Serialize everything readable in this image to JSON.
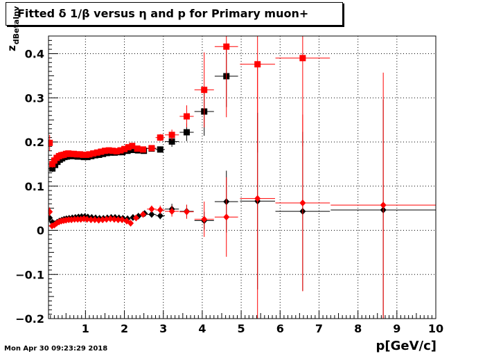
{
  "chart_data": {
    "type": "scatter",
    "title": "Fitted δ 1/β versus η and p for Primary muon+",
    "xlabel": "p[GeV/c]",
    "ylabel": "z",
    "ylabel_sub": "dBetaInv",
    "xlim": [
      0.05,
      10
    ],
    "ylim": [
      -0.2,
      0.44
    ],
    "xticks": [
      1,
      2,
      3,
      4,
      5,
      6,
      7,
      8,
      9,
      10
    ],
    "yticks": [
      -0.2,
      -0.1,
      0,
      0.1,
      0.2,
      0.3,
      0.4
    ],
    "ytick_labels": [
      "−0.2",
      "−0.1",
      "0",
      "0.1",
      "0.2",
      "0.3",
      "0.4"
    ],
    "grid": true,
    "series": [
      {
        "marker": "square",
        "color": "#000000",
        "points": [
          {
            "x": 0.15,
            "y": 0.14,
            "xe": 0.05,
            "ye": 0.008
          },
          {
            "x": 0.22,
            "y": 0.148,
            "xe": 0.03,
            "ye": 0.005
          },
          {
            "x": 0.28,
            "y": 0.155,
            "xe": 0.03,
            "ye": 0.004
          },
          {
            "x": 0.34,
            "y": 0.16,
            "xe": 0.03,
            "ye": 0.003
          },
          {
            "x": 0.4,
            "y": 0.163,
            "xe": 0.03,
            "ye": 0.003
          },
          {
            "x": 0.46,
            "y": 0.166,
            "xe": 0.03,
            "ye": 0.003
          },
          {
            "x": 0.52,
            "y": 0.167,
            "xe": 0.03,
            "ye": 0.003
          },
          {
            "x": 0.58,
            "y": 0.168,
            "xe": 0.03,
            "ye": 0.003
          },
          {
            "x": 0.65,
            "y": 0.168,
            "xe": 0.04,
            "ye": 0.003
          },
          {
            "x": 0.72,
            "y": 0.168,
            "xe": 0.04,
            "ye": 0.003
          },
          {
            "x": 0.8,
            "y": 0.167,
            "xe": 0.04,
            "ye": 0.003
          },
          {
            "x": 0.88,
            "y": 0.167,
            "xe": 0.04,
            "ye": 0.003
          },
          {
            "x": 0.96,
            "y": 0.166,
            "xe": 0.04,
            "ye": 0.003
          },
          {
            "x": 1.05,
            "y": 0.166,
            "xe": 0.05,
            "ye": 0.003
          },
          {
            "x": 1.15,
            "y": 0.168,
            "xe": 0.05,
            "ye": 0.003
          },
          {
            "x": 1.25,
            "y": 0.17,
            "xe": 0.05,
            "ye": 0.003
          },
          {
            "x": 1.35,
            "y": 0.171,
            "xe": 0.05,
            "ye": 0.003
          },
          {
            "x": 1.45,
            "y": 0.173,
            "xe": 0.05,
            "ye": 0.003
          },
          {
            "x": 1.55,
            "y": 0.175,
            "xe": 0.05,
            "ye": 0.003
          },
          {
            "x": 1.65,
            "y": 0.176,
            "xe": 0.05,
            "ye": 0.003
          },
          {
            "x": 1.75,
            "y": 0.176,
            "xe": 0.05,
            "ye": 0.003
          },
          {
            "x": 1.85,
            "y": 0.177,
            "xe": 0.05,
            "ye": 0.004
          },
          {
            "x": 1.95,
            "y": 0.177,
            "xe": 0.05,
            "ye": 0.004
          },
          {
            "x": 2.08,
            "y": 0.18,
            "xe": 0.08,
            "ye": 0.004
          },
          {
            "x": 2.2,
            "y": 0.182,
            "xe": 0.08,
            "ye": 0.004
          },
          {
            "x": 2.35,
            "y": 0.181,
            "xe": 0.08,
            "ye": 0.005
          },
          {
            "x": 2.5,
            "y": 0.18,
            "xe": 0.08,
            "ye": 0.005
          },
          {
            "x": 2.7,
            "y": 0.185,
            "xe": 0.12,
            "ye": 0.006
          },
          {
            "x": 2.92,
            "y": 0.183,
            "xe": 0.12,
            "ye": 0.007
          },
          {
            "x": 3.22,
            "y": 0.201,
            "xe": 0.18,
            "ye": 0.012
          },
          {
            "x": 3.6,
            "y": 0.222,
            "xe": 0.18,
            "ye": 0.02
          },
          {
            "x": 4.05,
            "y": 0.269,
            "xe": 0.25,
            "ye": 0.055
          },
          {
            "x": 4.62,
            "y": 0.349,
            "xe": 0.3,
            "ye": 0.07
          }
        ]
      },
      {
        "marker": "square",
        "color": "#ff0000",
        "points": [
          {
            "x": 0.08,
            "y": 0.198,
            "xe": 0.03,
            "ye": 0.018
          },
          {
            "x": 0.15,
            "y": 0.15,
            "xe": 0.04,
            "ye": 0.008
          },
          {
            "x": 0.2,
            "y": 0.158,
            "xe": 0.03,
            "ye": 0.006
          },
          {
            "x": 0.26,
            "y": 0.164,
            "xe": 0.03,
            "ye": 0.005
          },
          {
            "x": 0.32,
            "y": 0.168,
            "xe": 0.03,
            "ye": 0.004
          },
          {
            "x": 0.38,
            "y": 0.17,
            "xe": 0.03,
            "ye": 0.004
          },
          {
            "x": 0.44,
            "y": 0.171,
            "xe": 0.03,
            "ye": 0.003
          },
          {
            "x": 0.5,
            "y": 0.173,
            "xe": 0.03,
            "ye": 0.003
          },
          {
            "x": 0.56,
            "y": 0.174,
            "xe": 0.03,
            "ye": 0.003
          },
          {
            "x": 0.62,
            "y": 0.173,
            "xe": 0.03,
            "ye": 0.003
          },
          {
            "x": 0.7,
            "y": 0.173,
            "xe": 0.04,
            "ye": 0.003
          },
          {
            "x": 0.78,
            "y": 0.172,
            "xe": 0.04,
            "ye": 0.003
          },
          {
            "x": 0.86,
            "y": 0.172,
            "xe": 0.04,
            "ye": 0.003
          },
          {
            "x": 0.94,
            "y": 0.171,
            "xe": 0.04,
            "ye": 0.003
          },
          {
            "x": 1.02,
            "y": 0.171,
            "xe": 0.04,
            "ye": 0.003
          },
          {
            "x": 1.1,
            "y": 0.172,
            "xe": 0.05,
            "ye": 0.003
          },
          {
            "x": 1.2,
            "y": 0.174,
            "xe": 0.05,
            "ye": 0.003
          },
          {
            "x": 1.3,
            "y": 0.176,
            "xe": 0.05,
            "ye": 0.003
          },
          {
            "x": 1.4,
            "y": 0.178,
            "xe": 0.05,
            "ye": 0.003
          },
          {
            "x": 1.5,
            "y": 0.18,
            "xe": 0.05,
            "ye": 0.003
          },
          {
            "x": 1.6,
            "y": 0.181,
            "xe": 0.05,
            "ye": 0.003
          },
          {
            "x": 1.7,
            "y": 0.18,
            "xe": 0.05,
            "ye": 0.003
          },
          {
            "x": 1.8,
            "y": 0.179,
            "xe": 0.05,
            "ye": 0.004
          },
          {
            "x": 1.9,
            "y": 0.181,
            "xe": 0.05,
            "ye": 0.004
          },
          {
            "x": 2.0,
            "y": 0.184,
            "xe": 0.06,
            "ye": 0.004
          },
          {
            "x": 2.1,
            "y": 0.188,
            "xe": 0.06,
            "ye": 0.004
          },
          {
            "x": 2.2,
            "y": 0.191,
            "xe": 0.06,
            "ye": 0.005
          },
          {
            "x": 2.33,
            "y": 0.185,
            "xe": 0.07,
            "ye": 0.005
          },
          {
            "x": 2.48,
            "y": 0.183,
            "xe": 0.08,
            "ye": 0.005
          },
          {
            "x": 2.7,
            "y": 0.186,
            "xe": 0.12,
            "ye": 0.006
          },
          {
            "x": 2.92,
            "y": 0.21,
            "xe": 0.12,
            "ye": 0.008
          },
          {
            "x": 3.22,
            "y": 0.216,
            "xe": 0.18,
            "ye": 0.012
          },
          {
            "x": 3.6,
            "y": 0.258,
            "xe": 0.18,
            "ye": 0.025
          },
          {
            "x": 4.05,
            "y": 0.318,
            "xe": 0.25,
            "ye": 0.085
          },
          {
            "x": 4.62,
            "y": 0.416,
            "xe": 0.3,
            "ye": 0.16
          },
          {
            "x": 5.42,
            "y": 0.376,
            "xe": 0.45,
            "ye": 0.2
          },
          {
            "x": 6.58,
            "y": 0.39,
            "xe": 0.7,
            "ye": 0.2
          }
        ]
      },
      {
        "marker": "diamond",
        "color": "#000000",
        "points": [
          {
            "x": 0.08,
            "y": 0.028,
            "xe": 0.03,
            "ye": 0.008
          },
          {
            "x": 0.15,
            "y": 0.018,
            "xe": 0.04,
            "ye": 0.006
          },
          {
            "x": 0.21,
            "y": 0.015,
            "xe": 0.03,
            "ye": 0.005
          },
          {
            "x": 0.27,
            "y": 0.018,
            "xe": 0.03,
            "ye": 0.004
          },
          {
            "x": 0.33,
            "y": 0.021,
            "xe": 0.03,
            "ye": 0.004
          },
          {
            "x": 0.39,
            "y": 0.023,
            "xe": 0.03,
            "ye": 0.003
          },
          {
            "x": 0.45,
            "y": 0.025,
            "xe": 0.03,
            "ye": 0.003
          },
          {
            "x": 0.51,
            "y": 0.026,
            "xe": 0.03,
            "ye": 0.003
          },
          {
            "x": 0.58,
            "y": 0.027,
            "xe": 0.03,
            "ye": 0.003
          },
          {
            "x": 0.66,
            "y": 0.028,
            "xe": 0.04,
            "ye": 0.003
          },
          {
            "x": 0.74,
            "y": 0.029,
            "xe": 0.04,
            "ye": 0.003
          },
          {
            "x": 0.82,
            "y": 0.03,
            "xe": 0.04,
            "ye": 0.003
          },
          {
            "x": 0.9,
            "y": 0.031,
            "xe": 0.04,
            "ye": 0.003
          },
          {
            "x": 0.98,
            "y": 0.031,
            "xe": 0.04,
            "ye": 0.003
          },
          {
            "x": 1.06,
            "y": 0.03,
            "xe": 0.05,
            "ye": 0.003
          },
          {
            "x": 1.16,
            "y": 0.029,
            "xe": 0.05,
            "ye": 0.003
          },
          {
            "x": 1.26,
            "y": 0.028,
            "xe": 0.05,
            "ye": 0.003
          },
          {
            "x": 1.36,
            "y": 0.027,
            "xe": 0.05,
            "ye": 0.003
          },
          {
            "x": 1.46,
            "y": 0.027,
            "xe": 0.05,
            "ye": 0.003
          },
          {
            "x": 1.56,
            "y": 0.028,
            "xe": 0.05,
            "ye": 0.003
          },
          {
            "x": 1.66,
            "y": 0.029,
            "xe": 0.05,
            "ye": 0.003
          },
          {
            "x": 1.76,
            "y": 0.029,
            "xe": 0.05,
            "ye": 0.004
          },
          {
            "x": 1.86,
            "y": 0.028,
            "xe": 0.05,
            "ye": 0.004
          },
          {
            "x": 1.96,
            "y": 0.027,
            "xe": 0.05,
            "ye": 0.004
          },
          {
            "x": 2.08,
            "y": 0.026,
            "xe": 0.08,
            "ye": 0.004
          },
          {
            "x": 2.22,
            "y": 0.029,
            "xe": 0.08,
            "ye": 0.005
          },
          {
            "x": 2.36,
            "y": 0.032,
            "xe": 0.08,
            "ye": 0.005
          },
          {
            "x": 2.52,
            "y": 0.038,
            "xe": 0.08,
            "ye": 0.006
          },
          {
            "x": 2.7,
            "y": 0.036,
            "xe": 0.12,
            "ye": 0.007
          },
          {
            "x": 2.92,
            "y": 0.033,
            "xe": 0.12,
            "ye": 0.008
          },
          {
            "x": 3.22,
            "y": 0.048,
            "xe": 0.18,
            "ye": 0.012
          },
          {
            "x": 3.6,
            "y": 0.043,
            "xe": 0.18,
            "ye": 0.015
          },
          {
            "x": 4.05,
            "y": 0.022,
            "xe": 0.25,
            "ye": 0.02
          },
          {
            "x": 4.62,
            "y": 0.065,
            "xe": 0.3,
            "ye": 0.07
          },
          {
            "x": 5.42,
            "y": 0.066,
            "xe": 0.45,
            "ye": 0.2
          },
          {
            "x": 6.58,
            "y": 0.043,
            "xe": 0.7,
            "ye": 0.18
          },
          {
            "x": 8.65,
            "y": 0.046,
            "xe": 1.35,
            "ye": 0.25
          }
        ]
      },
      {
        "marker": "diamond",
        "color": "#ff0000",
        "points": [
          {
            "x": 0.08,
            "y": 0.042,
            "xe": 0.03,
            "ye": 0.01
          },
          {
            "x": 0.14,
            "y": 0.01,
            "xe": 0.04,
            "ye": 0.006
          },
          {
            "x": 0.2,
            "y": 0.012,
            "xe": 0.03,
            "ye": 0.005
          },
          {
            "x": 0.26,
            "y": 0.016,
            "xe": 0.03,
            "ye": 0.004
          },
          {
            "x": 0.32,
            "y": 0.019,
            "xe": 0.03,
            "ye": 0.004
          },
          {
            "x": 0.38,
            "y": 0.021,
            "xe": 0.03,
            "ye": 0.003
          },
          {
            "x": 0.44,
            "y": 0.022,
            "xe": 0.03,
            "ye": 0.003
          },
          {
            "x": 0.5,
            "y": 0.023,
            "xe": 0.03,
            "ye": 0.003
          },
          {
            "x": 0.57,
            "y": 0.024,
            "xe": 0.03,
            "ye": 0.003
          },
          {
            "x": 0.64,
            "y": 0.024,
            "xe": 0.04,
            "ye": 0.003
          },
          {
            "x": 0.72,
            "y": 0.025,
            "xe": 0.04,
            "ye": 0.003
          },
          {
            "x": 0.8,
            "y": 0.025,
            "xe": 0.04,
            "ye": 0.003
          },
          {
            "x": 0.88,
            "y": 0.025,
            "xe": 0.04,
            "ye": 0.003
          },
          {
            "x": 0.96,
            "y": 0.026,
            "xe": 0.04,
            "ye": 0.003
          },
          {
            "x": 1.04,
            "y": 0.025,
            "xe": 0.05,
            "ye": 0.003
          },
          {
            "x": 1.14,
            "y": 0.024,
            "xe": 0.05,
            "ye": 0.003
          },
          {
            "x": 1.24,
            "y": 0.024,
            "xe": 0.05,
            "ye": 0.003
          },
          {
            "x": 1.34,
            "y": 0.023,
            "xe": 0.05,
            "ye": 0.003
          },
          {
            "x": 1.44,
            "y": 0.024,
            "xe": 0.05,
            "ye": 0.003
          },
          {
            "x": 1.54,
            "y": 0.025,
            "xe": 0.05,
            "ye": 0.003
          },
          {
            "x": 1.64,
            "y": 0.026,
            "xe": 0.05,
            "ye": 0.003
          },
          {
            "x": 1.74,
            "y": 0.025,
            "xe": 0.05,
            "ye": 0.004
          },
          {
            "x": 1.84,
            "y": 0.024,
            "xe": 0.05,
            "ye": 0.004
          },
          {
            "x": 1.94,
            "y": 0.024,
            "xe": 0.05,
            "ye": 0.004
          },
          {
            "x": 2.06,
            "y": 0.021,
            "xe": 0.06,
            "ye": 0.005
          },
          {
            "x": 2.16,
            "y": 0.016,
            "xe": 0.06,
            "ye": 0.005
          },
          {
            "x": 2.3,
            "y": 0.028,
            "xe": 0.07,
            "ye": 0.005
          },
          {
            "x": 2.48,
            "y": 0.036,
            "xe": 0.08,
            "ye": 0.006
          },
          {
            "x": 2.7,
            "y": 0.048,
            "xe": 0.12,
            "ye": 0.008
          },
          {
            "x": 2.92,
            "y": 0.046,
            "xe": 0.12,
            "ye": 0.01
          },
          {
            "x": 3.22,
            "y": 0.043,
            "xe": 0.18,
            "ye": 0.012
          },
          {
            "x": 3.6,
            "y": 0.042,
            "xe": 0.18,
            "ye": 0.016
          },
          {
            "x": 4.05,
            "y": 0.025,
            "xe": 0.25,
            "ye": 0.04
          },
          {
            "x": 4.62,
            "y": 0.03,
            "xe": 0.3,
            "ye": 0.09
          },
          {
            "x": 5.42,
            "y": 0.072,
            "xe": 0.45,
            "ye": 0.3
          },
          {
            "x": 6.58,
            "y": 0.062,
            "xe": 0.7,
            "ye": 0.2
          },
          {
            "x": 8.65,
            "y": 0.057,
            "xe": 1.35,
            "ye": 0.3
          }
        ]
      }
    ]
  },
  "footer": {
    "timestamp": "Mon Apr 30 09:23:29 2018"
  }
}
